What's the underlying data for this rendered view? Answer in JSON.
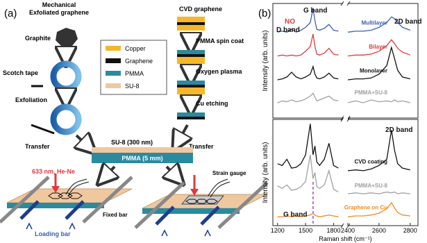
{
  "panel_a": {
    "label": "(a)",
    "mechanical_title": "Mechanical Exfoliated graphene",
    "graphite": "Graphite",
    "scotch_tape": "Scotch tape",
    "exfoliation": "Exfoliation",
    "transfer_left": "Transfer",
    "cvd_title": "CVD graphene",
    "pmma_spin_coat": "PMMA spin coat",
    "oxygen_plasma": "Oxygen plasma",
    "cu_etching": "Cu etching",
    "transfer_right": "Transfer",
    "legend": [
      {
        "name": "Copper",
        "color": "#f5b82a"
      },
      {
        "name": "Graphene",
        "color": "#111111"
      },
      {
        "name": "PMMA",
        "color": "#2a8aa0"
      },
      {
        "name": "SU-8",
        "color": "#f0c8a0"
      }
    ],
    "su8_layer": "SU-8 (300 nm)",
    "pmma_layer": "PMMA (5 mm)",
    "laser": "633 nm, He-Ne",
    "strain_gauge": "Strain gauge",
    "fixed_bar": "Fixed bar",
    "loading_bar": "Loading bar"
  },
  "panel_b_label": "(b)",
  "chart_data": [
    {
      "type": "line",
      "ylabel": "Intensity (arb. units)",
      "xlim": [
        1150,
        2850
      ],
      "x_break": [
        1900,
        2400
      ],
      "ylim": [
        0,
        12
      ],
      "x": [
        1200,
        1250,
        1300,
        1350,
        1400,
        1450,
        1500,
        1550,
        1580,
        1600,
        1620,
        1650,
        1700,
        1750,
        1800,
        1850,
        1950,
        2400,
        2450,
        2500,
        2550,
        2600,
        2650,
        2680,
        2700,
        2720,
        2750,
        2800
      ],
      "annotations": {
        "no": "NO",
        "d_band": "D band",
        "g_band": "G band",
        "band_2d": "2D band"
      },
      "series": [
        {
          "name": "Multilayer",
          "color": "#3a5fb0",
          "values": [
            9,
            9.1,
            9,
            9.3,
            9,
            9.2,
            9.5,
            10,
            11.5,
            10.2,
            9.3,
            9.2,
            9.4,
            9.8,
            9.2,
            9.1,
            null,
            9,
            9.1,
            9.1,
            9.2,
            9.5,
            10,
            10.6,
            10.4,
            10,
            9.5,
            9.2
          ]
        },
        {
          "name": "Bilayer",
          "color": "#e0393e",
          "values": [
            6.5,
            6.6,
            6.5,
            6.6,
            6.5,
            6.6,
            7,
            7.5,
            8.8,
            7.5,
            6.7,
            6.6,
            6.8,
            7.3,
            6.7,
            6.6,
            null,
            6.5,
            6.6,
            6.6,
            6.7,
            7,
            7.6,
            8.2,
            7.8,
            7.3,
            6.9,
            6.6
          ]
        },
        {
          "name": "Monolayer",
          "color": "#111111",
          "values": [
            4,
            4.1,
            4.3,
            4.8,
            4.3,
            4.1,
            4.3,
            4.6,
            5.4,
            4.6,
            4.2,
            4.1,
            4.3,
            4.7,
            4.2,
            4.1,
            null,
            4,
            4.1,
            4.1,
            4.2,
            4.6,
            5.5,
            7.4,
            6.2,
            5,
            4.3,
            4.1
          ]
        },
        {
          "name": "PMMA+SU-8",
          "color": "#a0a0a0",
          "values": [
            1.6,
            1.8,
            1.7,
            1.9,
            1.7,
            1.8,
            2,
            2.3,
            2.6,
            2.2,
            1.8,
            1.9,
            2.1,
            2.3,
            1.9,
            1.8,
            null,
            1.6,
            1.8,
            1.6,
            1.9,
            1.7,
            1.8,
            1.7,
            1.9,
            1.7,
            1.8,
            1.6
          ]
        }
      ]
    },
    {
      "type": "line",
      "ylabel": "Intensity (arb. units)",
      "xlabel": "Raman shift (cm⁻¹)",
      "xlim": [
        1150,
        2850
      ],
      "x_break": [
        1900,
        2400
      ],
      "ylim": [
        0,
        12
      ],
      "xticks": [
        1200,
        1500,
        1800,
        2400,
        2600,
        2800
      ],
      "x": [
        1200,
        1250,
        1300,
        1350,
        1400,
        1450,
        1500,
        1550,
        1580,
        1600,
        1620,
        1650,
        1700,
        1750,
        1800,
        1850,
        1950,
        2400,
        2450,
        2500,
        2550,
        2600,
        2650,
        2680,
        2700,
        2720,
        2750,
        2800
      ],
      "annotations": {
        "band_2d": "2D band",
        "g_band": "G band"
      },
      "marker_line": {
        "x": 1580,
        "color": "#b03cc8"
      },
      "series": [
        {
          "name": "CVD coating",
          "color": "#111111",
          "values": [
            7,
            6.8,
            7.5,
            6.5,
            6.6,
            7,
            8,
            11.5,
            8,
            9,
            7.2,
            6.8,
            7.5,
            9.3,
            6.8,
            6.5,
            null,
            6.2,
            6.3,
            6.2,
            6.4,
            6.8,
            7.5,
            10.8,
            8.5,
            7,
            6.5,
            6.3
          ]
        },
        {
          "name": "PMMA+SU-8",
          "color": "#a0a0a0",
          "values": [
            4.5,
            4.2,
            4.6,
            4,
            4.1,
            4.4,
            5,
            8,
            5.3,
            6,
            4.4,
            4.2,
            4.6,
            6.2,
            4.1,
            3.8,
            null,
            3.6,
            3.7,
            3.6,
            3.7,
            3.6,
            3.8,
            3.7,
            3.8,
            3.6,
            3.7,
            3.6
          ]
        },
        {
          "name": "Graphene on Cu",
          "color": "#f08a24",
          "values": [
            1,
            1,
            1.1,
            1,
            1.1,
            1,
            1.1,
            1.2,
            1.4,
            1.2,
            1.1,
            1,
            1.1,
            1.2,
            1.1,
            1,
            null,
            1,
            1.1,
            1.1,
            1.2,
            1.4,
            1.9,
            2.6,
            2,
            1.5,
            1.2,
            1.1
          ]
        }
      ]
    }
  ]
}
